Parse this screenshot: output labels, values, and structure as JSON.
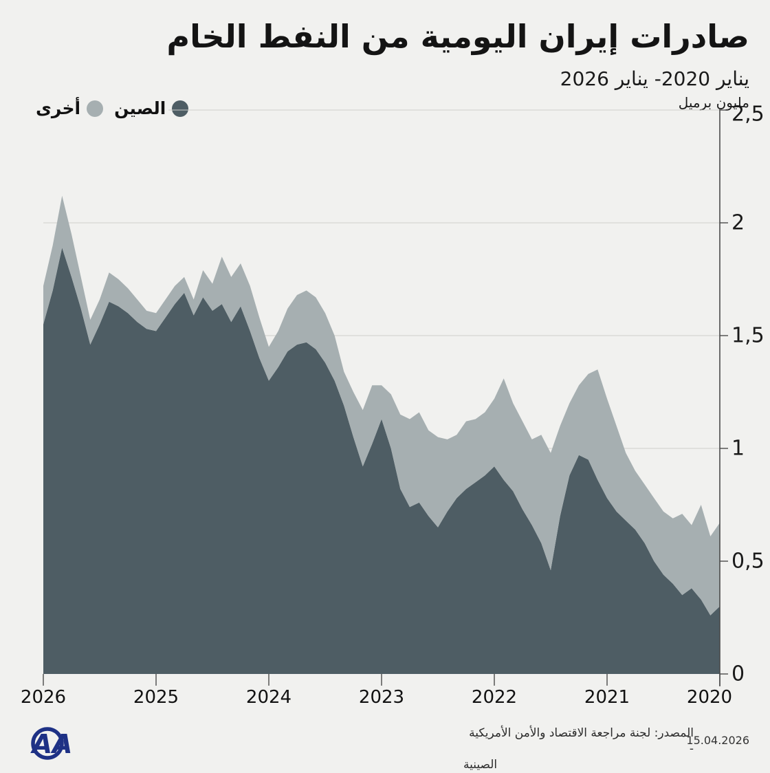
{
  "title": "صادرات إيران اليومية من النفط الخام",
  "subtitle": "يناير 2020- يناير 2026",
  "unit_label": "مليون برميل",
  "legend": {
    "items": [
      {
        "label": "الصين",
        "color": "#4e5d64"
      },
      {
        "label": "أخرى",
        "color": "#a6afb1"
      }
    ]
  },
  "footer": {
    "source_line1": "المصدر: لجنة مراجعة الاقتصاد والأمن الأمريكية -",
    "source_line2": "الصينية",
    "date": "15.04.2026",
    "logo_text": "AA"
  },
  "colors": {
    "background": "#f1f1ef",
    "china": "#4e5d64",
    "other": "#a6afb1",
    "grid": "#cfcfcb",
    "axis": "#4a4a4a",
    "text": "#1a1a1a",
    "logo": "#1e3185"
  },
  "chart_data": {
    "type": "area",
    "stacked": true,
    "title": "صادرات إيران اليومية من النفط الخام",
    "subtitle": "يناير 2020- يناير 2026",
    "ylabel": "مليون برميل",
    "frequency": "monthly",
    "x_start": "2020-01",
    "x_end": "2026-01",
    "x_axis_reversed": true,
    "x_tick_labels": [
      "2026",
      "2025",
      "2024",
      "2023",
      "2022",
      "2021",
      "2020"
    ],
    "y_axis": {
      "side": "right",
      "range": [
        0,
        2.5
      ],
      "ticks": [
        {
          "label": "2,5",
          "value": 2.5
        },
        {
          "label": "2",
          "value": 2
        },
        {
          "label": "1,5",
          "value": 1.5
        },
        {
          "label": "1",
          "value": 1
        },
        {
          "label": "0,5",
          "value": 0.5
        },
        {
          "label": "0",
          "value": 0
        }
      ]
    },
    "series": [
      {
        "name": "الصين",
        "color": "#4e5d64",
        "values": [
          0.3,
          0.26,
          0.33,
          0.38,
          0.35,
          0.4,
          0.44,
          0.5,
          0.58,
          0.64,
          0.68,
          0.72,
          0.78,
          0.86,
          0.95,
          0.97,
          0.88,
          0.7,
          0.46,
          0.58,
          0.66,
          0.73,
          0.81,
          0.86,
          0.92,
          0.88,
          0.85,
          0.82,
          0.78,
          0.72,
          0.65,
          0.7,
          0.76,
          0.74,
          0.82,
          1.0,
          1.13,
          1.02,
          0.92,
          1.05,
          1.19,
          1.3,
          1.38,
          1.44,
          1.47,
          1.46,
          1.43,
          1.36,
          1.3,
          1.4,
          1.52,
          1.63,
          1.56,
          1.64,
          1.61,
          1.67,
          1.59,
          1.69,
          1.64,
          1.58,
          1.52,
          1.53,
          1.56,
          1.6,
          1.63,
          1.65,
          1.55,
          1.46,
          1.62,
          1.76,
          1.89,
          1.7,
          1.55
        ]
      },
      {
        "name": "أخرى",
        "color": "#a6afb1",
        "values": [
          0.37,
          0.35,
          0.42,
          0.28,
          0.36,
          0.29,
          0.28,
          0.28,
          0.26,
          0.26,
          0.3,
          0.38,
          0.44,
          0.49,
          0.38,
          0.31,
          0.32,
          0.4,
          0.52,
          0.48,
          0.38,
          0.39,
          0.39,
          0.45,
          0.3,
          0.28,
          0.28,
          0.3,
          0.28,
          0.32,
          0.4,
          0.38,
          0.4,
          0.39,
          0.33,
          0.24,
          0.15,
          0.26,
          0.25,
          0.2,
          0.15,
          0.2,
          0.22,
          0.23,
          0.23,
          0.22,
          0.19,
          0.16,
          0.15,
          0.18,
          0.2,
          0.19,
          0.2,
          0.21,
          0.12,
          0.12,
          0.07,
          0.07,
          0.08,
          0.08,
          0.08,
          0.08,
          0.1,
          0.11,
          0.12,
          0.13,
          0.11,
          0.11,
          0.14,
          0.19,
          0.23,
          0.2,
          0.17
        ]
      }
    ]
  }
}
